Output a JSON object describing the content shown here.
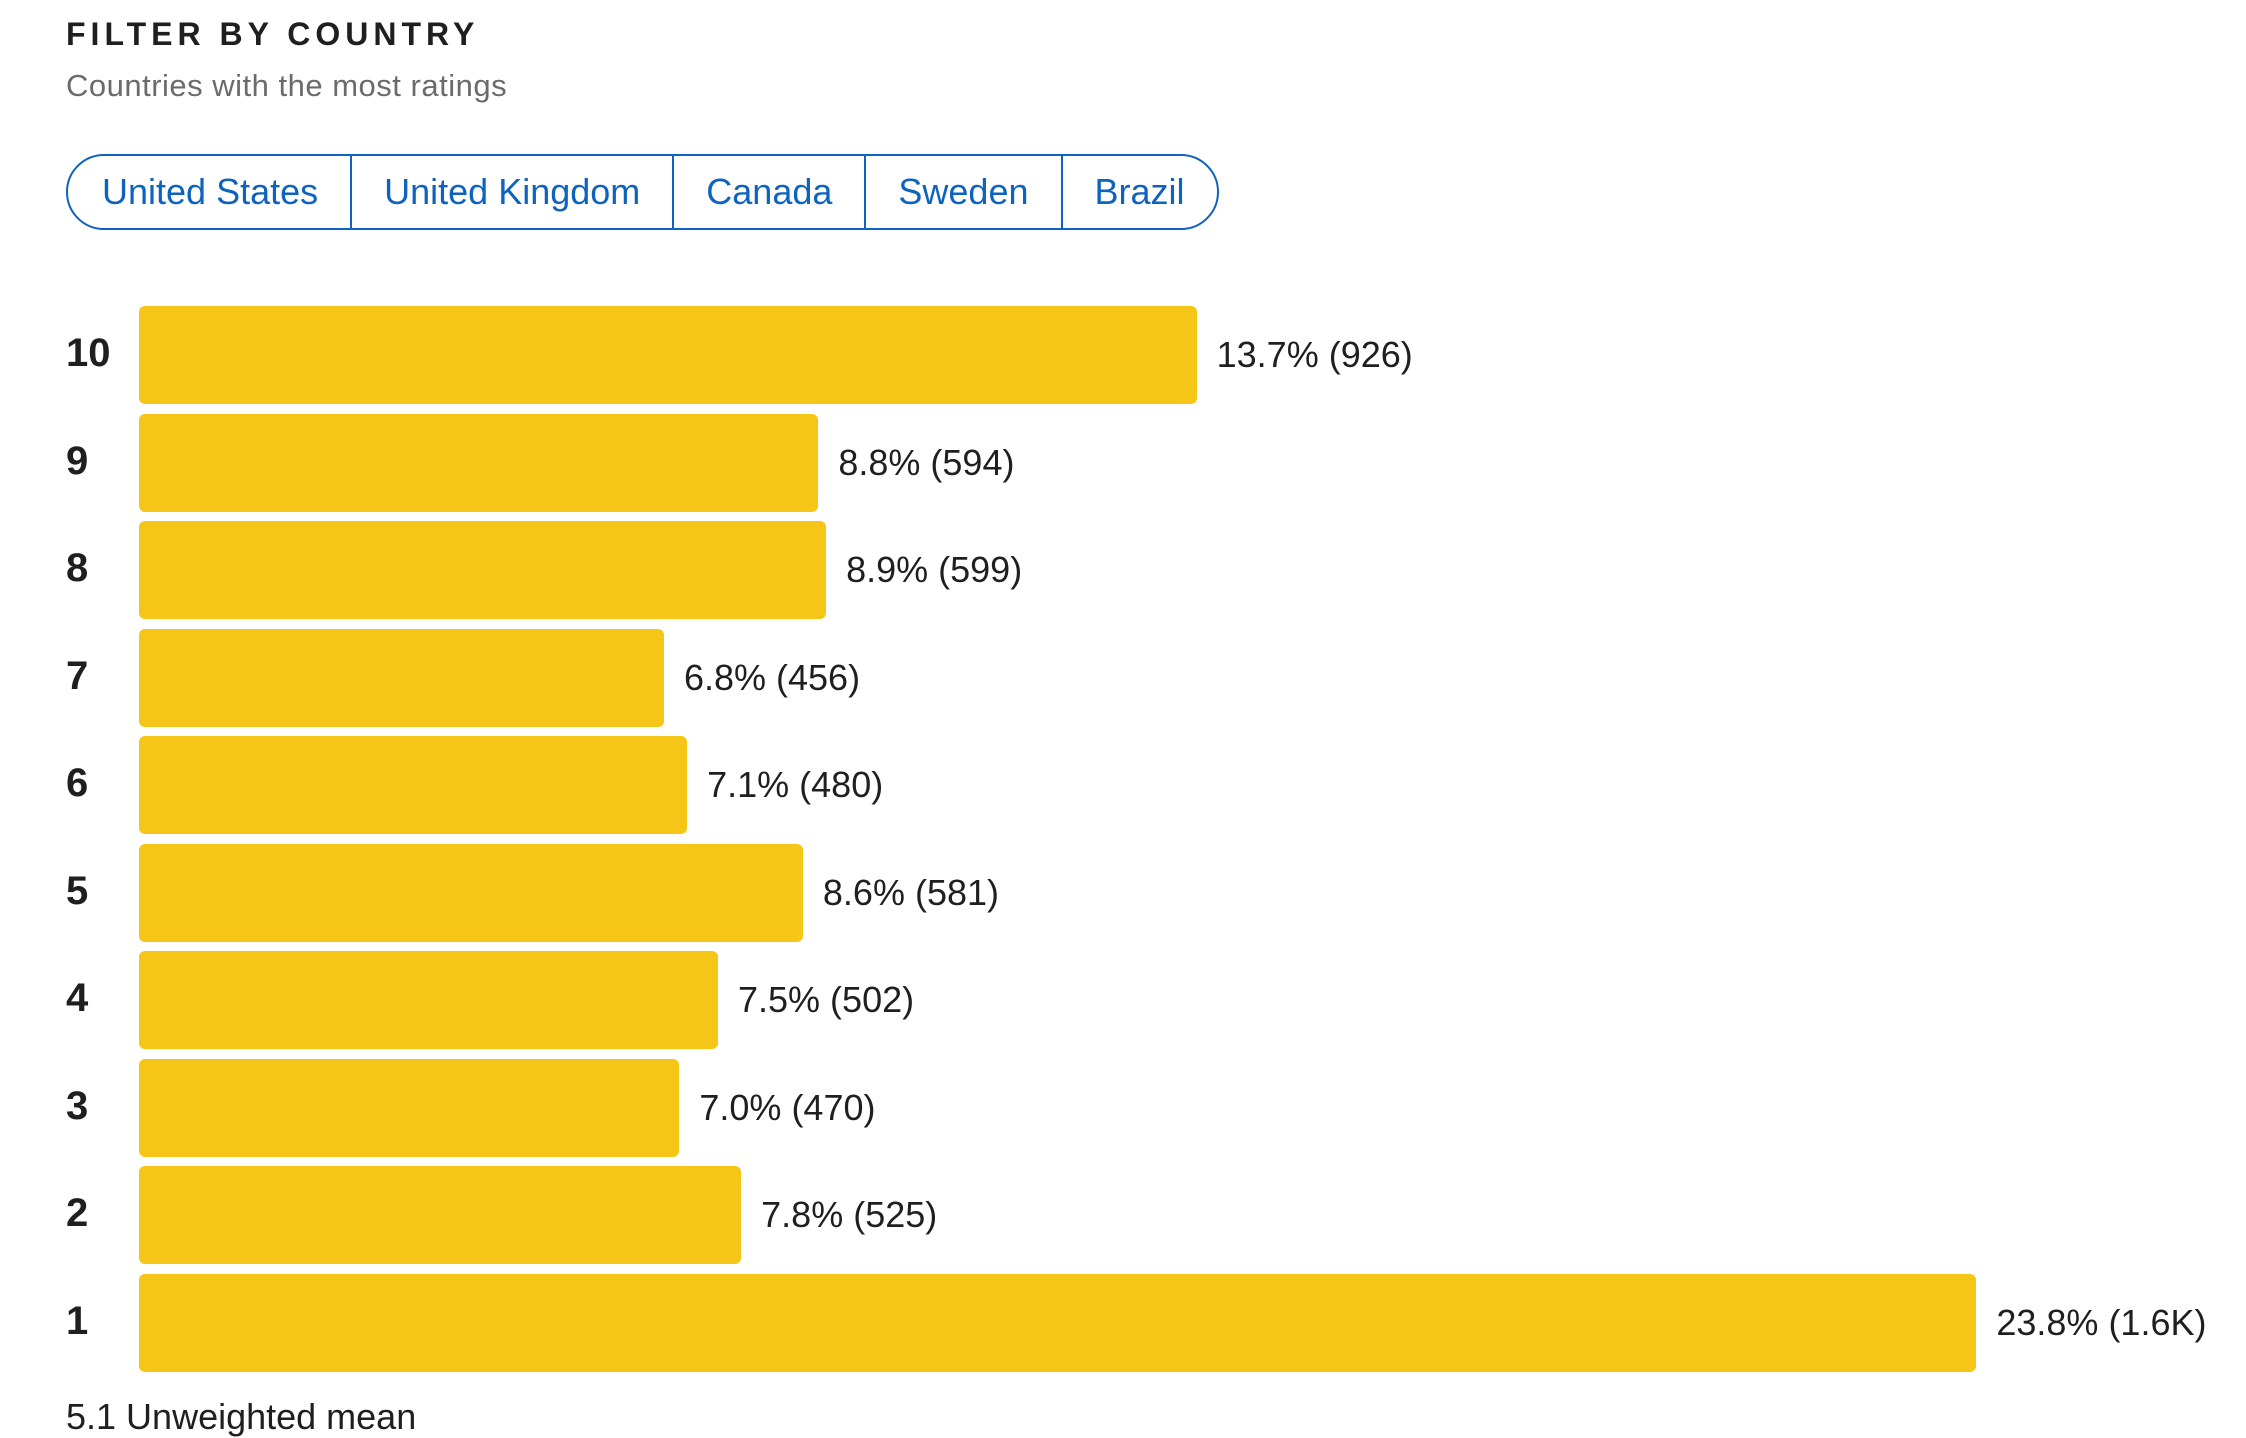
{
  "header": {
    "title": "FILTER BY COUNTRY",
    "subtitle": "Countries with the most ratings"
  },
  "country_filters": [
    {
      "label": "United States"
    },
    {
      "label": "United Kingdom"
    },
    {
      "label": "Canada"
    },
    {
      "label": "Sweden"
    },
    {
      "label": "Brazil"
    }
  ],
  "footer": {
    "text": "5.1 Unweighted mean"
  },
  "colors": {
    "bar": "#f5c518",
    "accent": "#0e63be"
  },
  "chart_data": {
    "type": "bar",
    "orientation": "horizontal",
    "categories": [
      "10",
      "9",
      "8",
      "7",
      "6",
      "5",
      "4",
      "3",
      "2",
      "1"
    ],
    "values": [
      13.7,
      8.8,
      8.9,
      6.8,
      7.1,
      8.6,
      7.5,
      7.0,
      7.8,
      23.8
    ],
    "counts": [
      926,
      594,
      599,
      456,
      480,
      581,
      502,
      470,
      525,
      1600
    ],
    "value_labels": [
      "13.7% (926)",
      "8.8% (594)",
      "8.9% (599)",
      "6.8% (456)",
      "7.1% (480)",
      "8.6% (581)",
      "7.5% (502)",
      "7.0% (470)",
      "7.8% (525)",
      "23.8% (1.6K)"
    ],
    "unit": "%",
    "grid": false,
    "legend": "none"
  }
}
